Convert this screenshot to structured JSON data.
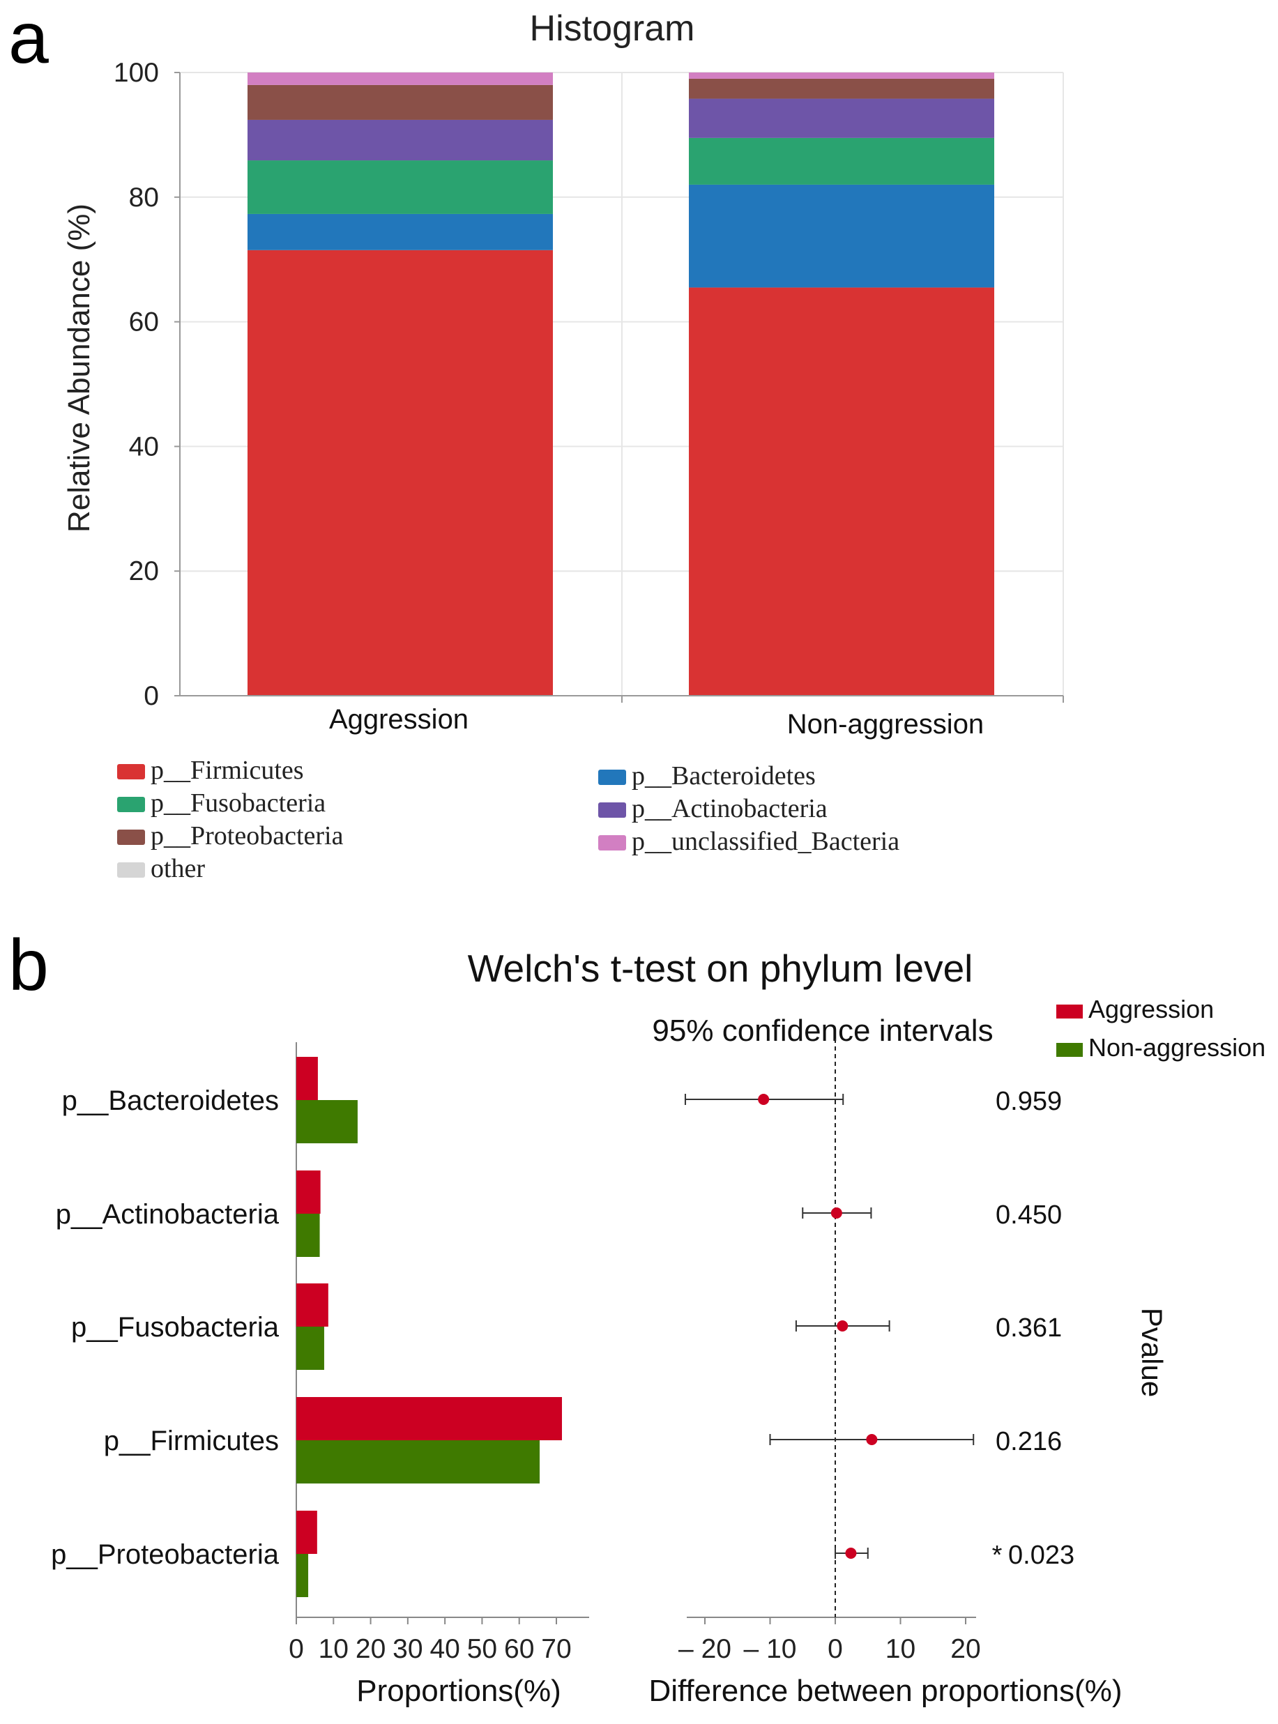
{
  "panel_a": {
    "label": "a",
    "chart_data": {
      "type": "stacked-bar",
      "title": "Histogram",
      "ylabel": "Relative  Abundance (%)",
      "xlabel": "",
      "ylim": [
        0,
        100
      ],
      "yticks": [
        "0",
        "20",
        "40",
        "60",
        "80",
        "100"
      ],
      "categories": [
        "Aggression",
        "Non-aggression"
      ],
      "series": [
        {
          "name": "p__Firmicutes",
          "color": "#d93333",
          "values": [
            71.5,
            65.5
          ]
        },
        {
          "name": "p__Bacteroidetes",
          "color": "#2277bb",
          "values": [
            5.8,
            16.5
          ]
        },
        {
          "name": "p__Fusobacteria",
          "color": "#2aa370",
          "values": [
            8.6,
            7.5
          ]
        },
        {
          "name": "p__Actinobacteria",
          "color": "#6e55a8",
          "values": [
            6.5,
            6.3
          ]
        },
        {
          "name": "p__Proteobacteria",
          "color": "#8a5048",
          "values": [
            5.6,
            3.2
          ]
        },
        {
          "name": "p__unclassified_Bacteria",
          "color": "#d27fc2",
          "values": [
            2.0,
            1.0
          ]
        },
        {
          "name": "other",
          "color": "#d5d5d5",
          "values": [
            0.0,
            0.0
          ]
        }
      ]
    },
    "legend_left": [
      "p__Firmicutes",
      "p__Fusobacteria",
      "p__Proteobacteria",
      "other"
    ],
    "legend_right": [
      "p__Bacteroidetes",
      "p__Actinobacteria",
      "p__unclassified_Bacteria"
    ]
  },
  "panel_b": {
    "label": "b",
    "chart_data": {
      "type": "bar-with-confidence-intervals",
      "title": "Welch's t-test on phylum level",
      "subtitle": "95% confidence intervals",
      "legend": [
        {
          "name": "Aggression",
          "color": "#cc0022"
        },
        {
          "name": "Non-aggression",
          "color": "#3f7a00"
        }
      ],
      "categories": [
        "p__Bacteroidetes",
        "p__Actinobacteria",
        "p__Fusobacteria",
        "p__Firmicutes",
        "p__Proteobacteria"
      ],
      "proportions": {
        "xlabel": "Proportions(%)",
        "xlim": [
          0,
          75
        ],
        "xticks": [
          "0",
          "10",
          "20",
          "30",
          "40",
          "50",
          "60",
          "70"
        ],
        "series": [
          {
            "name": "Aggression",
            "values": [
              5.8,
              6.5,
              8.6,
              71.5,
              5.6
            ]
          },
          {
            "name": "Non-aggression",
            "values": [
              16.5,
              6.3,
              7.5,
              65.5,
              3.2
            ]
          }
        ]
      },
      "difference": {
        "xlabel": "Difference between proportions(%)",
        "xlim": [
          -23,
          22
        ],
        "xticks": [
          "– 20",
          "– 10",
          "0",
          "10",
          "20"
        ],
        "estimate": [
          -11.0,
          0.2,
          1.1,
          5.6,
          2.4
        ],
        "ci_low": [
          -23.0,
          -5.0,
          -6.0,
          -10.0,
          0.0
        ],
        "ci_high": [
          1.2,
          5.5,
          8.3,
          21.2,
          5.0
        ]
      },
      "pvalue_label": "Pvalue",
      "pvalues": [
        "0.959",
        "0.450",
        "0.361",
        "0.216",
        "0.023"
      ],
      "significance": [
        "",
        "",
        "",
        "",
        "*"
      ]
    }
  }
}
